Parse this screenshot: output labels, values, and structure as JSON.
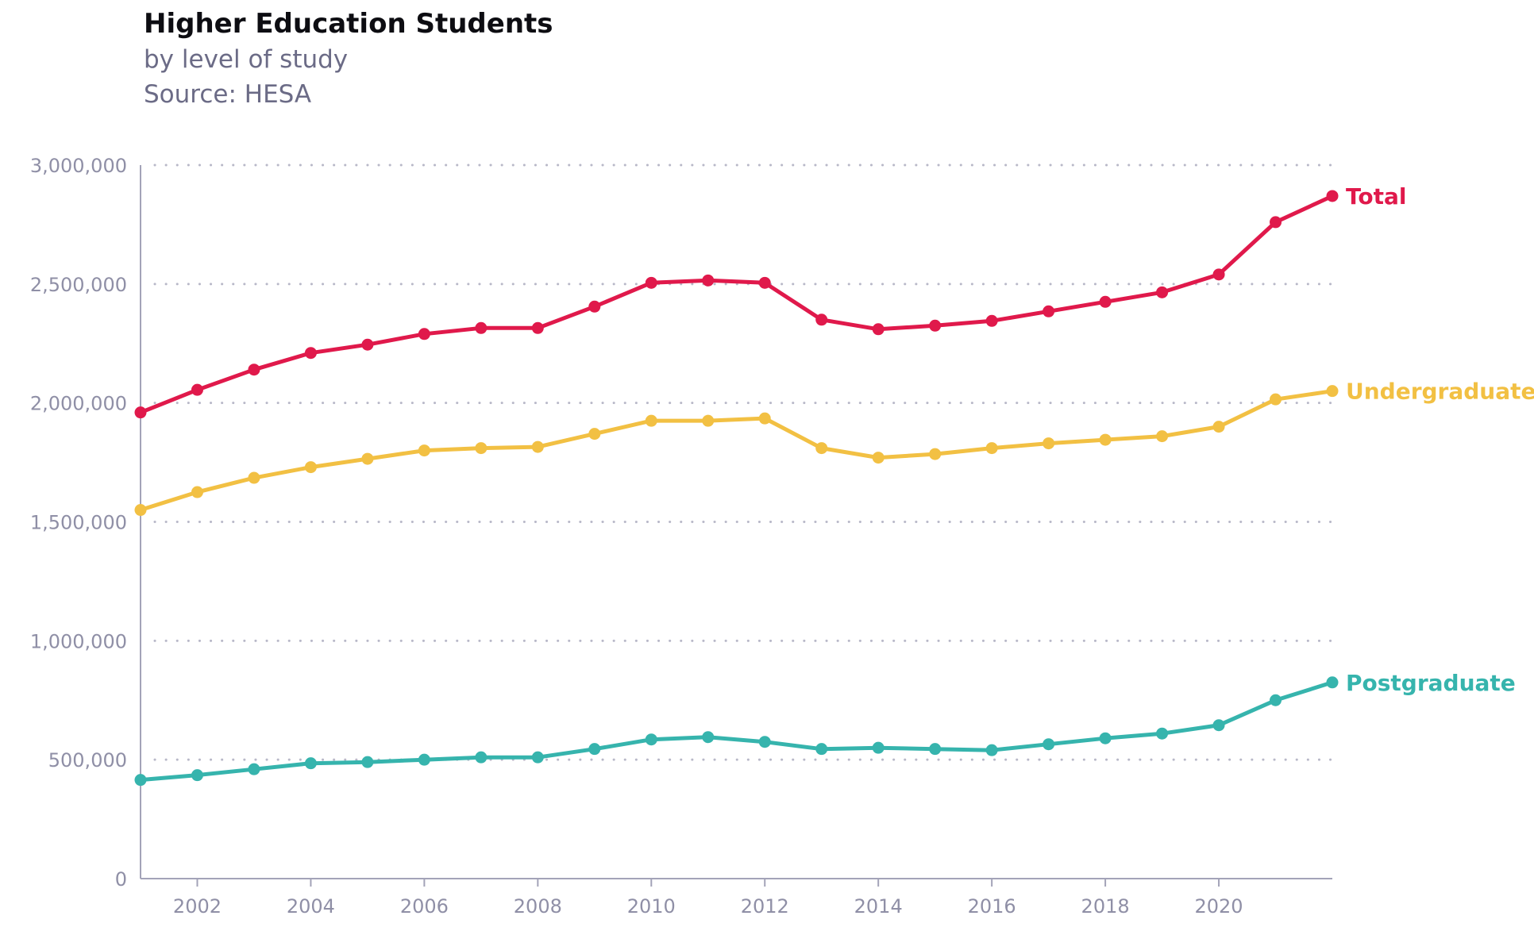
{
  "chart_data": {
    "type": "line",
    "title": "Higher Education Students",
    "subtitle": "by level of study",
    "source": "Source: HESA",
    "xlabel": "",
    "ylabel": "",
    "x": [
      2001,
      2002,
      2003,
      2004,
      2005,
      2006,
      2007,
      2008,
      2009,
      2010,
      2011,
      2012,
      2013,
      2014,
      2015,
      2016,
      2017,
      2018,
      2019,
      2020,
      2021,
      2022
    ],
    "x_ticks": [
      {
        "value": 2002,
        "label": "2002"
      },
      {
        "value": 2004,
        "label": "2004"
      },
      {
        "value": 2006,
        "label": "2006"
      },
      {
        "value": 2008,
        "label": "2008"
      },
      {
        "value": 2010,
        "label": "2010"
      },
      {
        "value": 2012,
        "label": "2012"
      },
      {
        "value": 2014,
        "label": "2014"
      },
      {
        "value": 2016,
        "label": "2016"
      },
      {
        "value": 2018,
        "label": "2018"
      },
      {
        "value": 2020,
        "label": "2020"
      }
    ],
    "y_ticks": [
      {
        "value": 0,
        "label": "0"
      },
      {
        "value": 500000,
        "label": "500,000"
      },
      {
        "value": 1000000,
        "label": "1,000,000"
      },
      {
        "value": 1500000,
        "label": "1,500,000"
      },
      {
        "value": 2000000,
        "label": "2,000,000"
      },
      {
        "value": 2500000,
        "label": "2,500,000"
      },
      {
        "value": 3000000,
        "label": "3,000,000"
      }
    ],
    "ylim": [
      0,
      3000000
    ],
    "xlim": [
      2001,
      2022
    ],
    "grid": "horizontal-dotted",
    "legend": "end-of-line labels",
    "series": [
      {
        "name": "Total",
        "color": "#e0194b",
        "values": [
          1960000,
          2055000,
          2140000,
          2210000,
          2245000,
          2290000,
          2315000,
          2315000,
          2405000,
          2505000,
          2515000,
          2505000,
          2350000,
          2310000,
          2325000,
          2345000,
          2385000,
          2425000,
          2465000,
          2540000,
          2760000,
          2870000
        ]
      },
      {
        "name": "Undergraduate",
        "color": "#f2c043",
        "values": [
          1550000,
          1625000,
          1685000,
          1730000,
          1765000,
          1800000,
          1810000,
          1815000,
          1870000,
          1925000,
          1925000,
          1935000,
          1810000,
          1770000,
          1785000,
          1810000,
          1830000,
          1845000,
          1860000,
          1900000,
          2015000,
          2050000
        ]
      },
      {
        "name": "Postgraduate",
        "color": "#36b4ad",
        "values": [
          415000,
          435000,
          460000,
          485000,
          490000,
          500000,
          510000,
          510000,
          545000,
          585000,
          595000,
          575000,
          545000,
          550000,
          545000,
          540000,
          565000,
          590000,
          610000,
          645000,
          750000,
          825000
        ]
      }
    ]
  }
}
